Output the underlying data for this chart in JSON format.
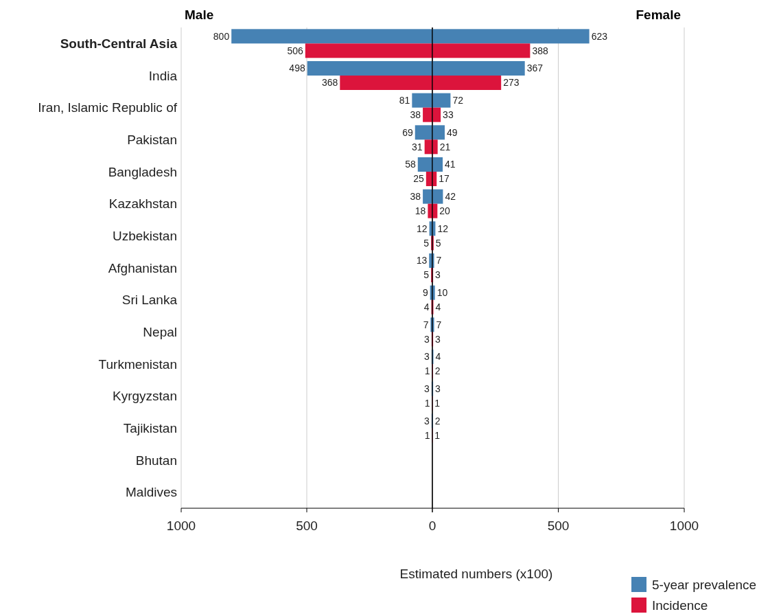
{
  "chart_data": [
    {
      "type": "bar",
      "orientation": "horizontal",
      "title": "Male",
      "categories": [
        "South-Central Asia",
        "India",
        "Iran, Islamic Republic of",
        "Pakistan",
        "Bangladesh",
        "Kazakhstan",
        "Uzbekistan",
        "Afghanistan",
        "Sri Lanka",
        "Nepal",
        "Turkmenistan",
        "Kyrgyzstan",
        "Tajikistan",
        "Bhutan",
        "Maldives"
      ],
      "series": [
        {
          "color": "#4682b4",
          "values": [
            800,
            498,
            81,
            69,
            58,
            38,
            12,
            13,
            9,
            7,
            3,
            3,
            3,
            null,
            null
          ]
        },
        {
          "color": "#dc143c",
          "values": [
            506,
            368,
            38,
            31,
            25,
            18,
            5,
            5,
            4,
            3,
            1,
            1,
            1,
            null,
            null
          ]
        }
      ],
      "xlim": [
        1000,
        0
      ],
      "xticks": [
        1000,
        500,
        {
          "value": 0,
          "label": null
        }
      ],
      "grid": "x",
      "data_labels": true
    },
    {
      "type": "bar",
      "orientation": "horizontal",
      "title": "Female",
      "xlabel": "Estimated numbers (x100)",
      "categories": [
        null,
        null,
        null,
        null,
        null,
        null,
        null,
        null,
        null,
        null,
        null,
        null,
        null,
        null,
        null
      ],
      "series": [
        {
          "name": "5-year prevalence",
          "color": "#4682b4",
          "values": [
            623,
            367,
            72,
            49,
            41,
            42,
            12,
            7,
            10,
            7,
            4,
            3,
            2,
            null,
            null
          ]
        },
        {
          "name": "Incidence",
          "color": "#dc143c",
          "values": [
            388,
            273,
            33,
            21,
            17,
            20,
            5,
            3,
            4,
            3,
            2,
            1,
            1,
            null,
            null
          ]
        }
      ],
      "xlim": [
        0,
        1000
      ],
      "xticks": [
        0,
        500,
        1000
      ],
      "grid": "x",
      "data_labels": true,
      "tick_labels": "x",
      "legend": "bottom right"
    }
  ]
}
